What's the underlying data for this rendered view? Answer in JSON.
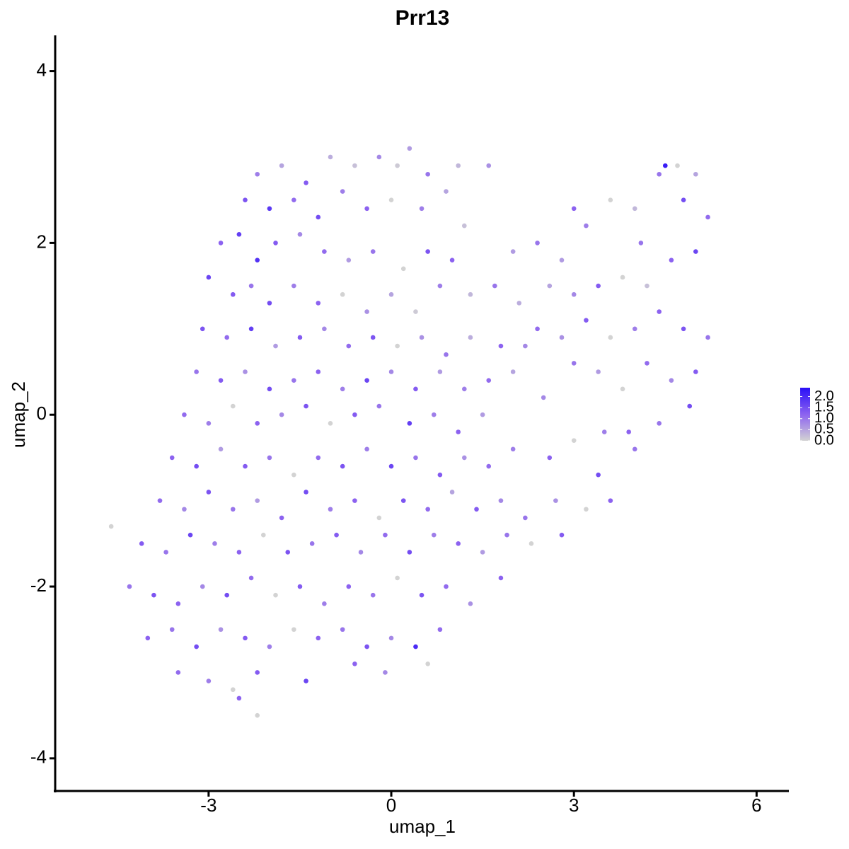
{
  "chart_data": {
    "type": "scatter",
    "title": "Prr13",
    "x_label": "umap_1",
    "y_label": "umap_2",
    "xlim": [
      -5.52,
      6.53
    ],
    "ylim": [
      -4.38,
      4.4
    ],
    "xticks": [
      -3,
      0,
      3,
      6
    ],
    "yticks": [
      -4,
      -2,
      0,
      2,
      4
    ],
    "colors": [
      "#d3d3d3",
      "#8c62f0",
      "#2a0ff7"
    ],
    "color_limits": [
      0,
      2.4
    ],
    "colorbar_ticks": [
      {
        "value": 0,
        "label": "0.0"
      },
      {
        "value": 0.5,
        "label": "0.5"
      },
      {
        "value": 1,
        "label": "1.0"
      },
      {
        "value": 1.5,
        "label": "1.5"
      },
      {
        "value": 2,
        "label": "2.0"
      }
    ],
    "x": [
      -2.2,
      -1.8,
      -1.4,
      -1.0,
      -0.6,
      -0.2,
      0.1,
      0.3,
      0.6,
      1.1,
      1.6,
      -2.4,
      -2.0,
      -1.6,
      -1.2,
      -0.8,
      -0.4,
      0.0,
      0.5,
      0.9,
      1.2,
      -2.8,
      -2.5,
      -2.2,
      -1.9,
      -1.5,
      -1.1,
      -0.7,
      -0.3,
      0.2,
      0.6,
      1.0,
      -3.0,
      -2.6,
      -2.3,
      -2.0,
      -1.6,
      -1.2,
      -0.8,
      -0.4,
      0.0,
      0.4,
      0.8,
      1.3,
      1.7,
      2.1,
      -3.1,
      -2.7,
      -2.3,
      -1.9,
      -1.5,
      -1.1,
      -0.7,
      -0.3,
      0.1,
      0.5,
      0.9,
      1.3,
      1.8,
      2.2,
      -3.2,
      -2.8,
      -2.4,
      -2.0,
      -1.6,
      -1.2,
      -0.8,
      -0.4,
      0.0,
      0.4,
      0.8,
      1.2,
      1.6,
      2.0,
      -3.4,
      -3.0,
      -2.6,
      -2.2,
      -1.8,
      -1.4,
      -1.0,
      -0.6,
      -0.2,
      0.3,
      0.7,
      1.1,
      1.5,
      2.5,
      -3.6,
      -3.2,
      -2.8,
      -2.4,
      -2.0,
      -1.6,
      -1.2,
      -0.8,
      -0.4,
      0.0,
      0.4,
      0.8,
      1.2,
      1.6,
      2.0,
      2.6,
      3.0,
      3.4,
      -3.8,
      -3.4,
      -3.0,
      -2.6,
      -2.2,
      -1.8,
      -1.4,
      -1.0,
      -0.6,
      -0.2,
      0.2,
      0.6,
      1.0,
      1.4,
      1.8,
      2.2,
      2.7,
      3.2,
      3.6,
      -4.6,
      -4.1,
      -3.7,
      -3.3,
      -2.9,
      -2.5,
      -2.1,
      -1.7,
      -1.3,
      -0.9,
      -0.5,
      -0.1,
      0.3,
      0.7,
      1.1,
      1.5,
      1.9,
      2.3,
      2.8,
      -4.3,
      -3.9,
      -3.5,
      -3.1,
      -2.7,
      -2.3,
      -1.9,
      -1.5,
      -1.1,
      -0.7,
      -0.3,
      0.1,
      0.5,
      0.9,
      1.3,
      1.8,
      -4.0,
      -3.6,
      -3.2,
      -2.8,
      -2.4,
      -2.0,
      -1.6,
      -1.2,
      -0.8,
      -0.4,
      0.0,
      0.4,
      0.8,
      -3.5,
      -3.0,
      -2.6,
      -2.2,
      -1.4,
      -0.6,
      -0.1,
      0.6,
      -2.2,
      -2.5,
      2.4,
      2.8,
      3.2,
      3.6,
      4.0,
      4.4,
      4.5,
      4.8,
      5.2,
      5.0,
      4.6,
      4.2,
      3.8,
      3.4,
      3.0,
      2.6,
      2.4,
      2.8,
      3.2,
      3.6,
      4.0,
      4.4,
      4.8,
      5.2,
      5.0,
      4.6,
      4.2,
      3.8,
      3.4,
      3.0,
      4.9,
      4.4,
      3.9,
      4.0,
      3.5,
      5.0,
      4.7,
      4.1,
      3.0,
      2.0
    ],
    "y": [
      2.8,
      2.9,
      2.7,
      3.0,
      2.9,
      3.0,
      2.9,
      3.1,
      2.8,
      2.9,
      2.9,
      2.5,
      2.4,
      2.5,
      2.3,
      2.6,
      2.4,
      2.5,
      2.4,
      2.6,
      2.2,
      2.0,
      2.1,
      1.8,
      2.0,
      2.1,
      1.9,
      1.8,
      1.9,
      1.7,
      1.9,
      1.8,
      1.6,
      1.4,
      1.5,
      1.3,
      1.5,
      1.3,
      1.4,
      1.2,
      1.4,
      1.2,
      1.5,
      1.4,
      1.5,
      1.3,
      1.0,
      0.9,
      1.0,
      0.8,
      0.9,
      1.0,
      0.8,
      0.9,
      0.8,
      0.9,
      0.7,
      0.9,
      0.8,
      0.8,
      0.5,
      0.4,
      0.5,
      0.3,
      0.4,
      0.5,
      0.3,
      0.4,
      0.5,
      0.3,
      0.5,
      0.3,
      0.4,
      0.5,
      0.0,
      -0.1,
      0.1,
      -0.1,
      0.0,
      0.1,
      -0.1,
      0.0,
      0.1,
      -0.1,
      0.0,
      -0.2,
      0.0,
      0.2,
      -0.5,
      -0.6,
      -0.4,
      -0.6,
      -0.5,
      -0.7,
      -0.5,
      -0.6,
      -0.4,
      -0.6,
      -0.5,
      -0.7,
      -0.5,
      -0.6,
      -0.4,
      -0.5,
      -0.3,
      -0.7,
      -1.0,
      -1.1,
      -0.9,
      -1.1,
      -1.0,
      -1.2,
      -0.9,
      -1.1,
      -1.0,
      -1.2,
      -1.0,
      -1.1,
      -0.9,
      -1.1,
      -1.0,
      -1.2,
      -1.0,
      -1.1,
      -1.0,
      -1.3,
      -1.5,
      -1.6,
      -1.4,
      -1.5,
      -1.6,
      -1.4,
      -1.6,
      -1.5,
      -1.4,
      -1.6,
      -1.4,
      -1.6,
      -1.4,
      -1.5,
      -1.6,
      -1.4,
      -1.5,
      -1.4,
      -2.0,
      -2.1,
      -2.2,
      -2.0,
      -2.1,
      -1.9,
      -2.1,
      -2.0,
      -2.2,
      -2.0,
      -2.1,
      -1.9,
      -2.1,
      -2.0,
      -2.2,
      -1.9,
      -2.6,
      -2.5,
      -2.7,
      -2.5,
      -2.6,
      -2.7,
      -2.5,
      -2.6,
      -2.5,
      -2.7,
      -2.6,
      -2.7,
      -2.5,
      -3.0,
      -3.1,
      -3.2,
      -3.0,
      -3.1,
      -2.9,
      -3.0,
      -2.9,
      -3.5,
      -3.3,
      2.0,
      1.8,
      2.2,
      2.5,
      2.4,
      2.8,
      2.9,
      2.5,
      2.3,
      1.9,
      1.8,
      1.5,
      1.6,
      1.5,
      1.4,
      1.5,
      1.0,
      0.9,
      1.1,
      0.9,
      1.0,
      1.2,
      1.0,
      0.9,
      0.5,
      0.4,
      0.6,
      0.3,
      0.5,
      0.6,
      0.1,
      -0.1,
      -0.2,
      -0.4,
      -0.2,
      2.8,
      2.9,
      2.0,
      2.4,
      1.9
    ],
    "values": [
      0.9,
      0.5,
      1.3,
      0.4,
      0.2,
      0.8,
      0.1,
      0.6,
      1.0,
      0.3,
      0.7,
      1.4,
      1.8,
      1.1,
      1.5,
      0.9,
      1.2,
      0.0,
      0.9,
      0.5,
      0.2,
      1.2,
      1.7,
      1.9,
      1.3,
      0.8,
      1.1,
      0.6,
      1.0,
      0.0,
      1.4,
      1.2,
      1.6,
      1.3,
      1.0,
      1.5,
      0.9,
      1.2,
      0.0,
      0.7,
      0.5,
      0.1,
      0.9,
      0.3,
      1.0,
      0.4,
      1.4,
      1.1,
      1.7,
      0.6,
      1.3,
      0.8,
      1.1,
      1.4,
      0.0,
      0.7,
      1.0,
      0.4,
      1.2,
      0.8,
      1.0,
      1.3,
      0.7,
      1.5,
      1.0,
      1.2,
      0.9,
      1.6,
      0.8,
      1.3,
      0.6,
      0.9,
      1.1,
      0.5,
      1.1,
      0.9,
      0.0,
      1.2,
      0.8,
      1.4,
      0.0,
      1.3,
      1.0,
      1.7,
      0.9,
      1.2,
      0.6,
      0.8,
      1.2,
      1.5,
      0.6,
      1.3,
      1.0,
      0.0,
      1.1,
      1.4,
      0.9,
      1.6,
      1.0,
      1.3,
      0.7,
      1.1,
      0.9,
      1.2,
      0.0,
      1.5,
      1.1,
      0.8,
      1.4,
      1.0,
      0.6,
      1.2,
      1.5,
      0.9,
      1.2,
      0.0,
      1.4,
      1.1,
      0.5,
      1.3,
      0.8,
      1.0,
      0.7,
      0.0,
      1.2,
      0.0,
      1.3,
      1.0,
      1.6,
      0.9,
      1.2,
      0.0,
      1.4,
      1.0,
      1.3,
      0.8,
      1.1,
      1.5,
      0.9,
      1.2,
      0.6,
      1.0,
      0.0,
      1.3,
      1.0,
      1.4,
      1.2,
      0.8,
      1.5,
      1.1,
      0.0,
      1.3,
      0.9,
      1.2,
      1.0,
      0.0,
      1.4,
      1.1,
      0.7,
      1.2,
      1.2,
      1.0,
      1.5,
      0.7,
      1.3,
      0.9,
      0.0,
      1.2,
      1.0,
      1.4,
      0.8,
      2.0,
      1.1,
      1.1,
      0.9,
      0.0,
      1.3,
      1.6,
      1.2,
      0.8,
      0.0,
      0.0,
      1.2,
      1.0,
      0.6,
      0.9,
      0.0,
      0.3,
      1.0,
      2.2,
      1.5,
      1.1,
      1.6,
      1.2,
      0.2,
      0.0,
      1.3,
      0.8,
      0.5,
      1.1,
      0.7,
      1.3,
      0.0,
      0.9,
      1.2,
      1.4,
      1.0,
      1.3,
      0.8,
      1.1,
      0.0,
      0.6,
      1.0,
      1.5,
      1.0,
      1.2,
      1.0,
      0.9,
      0.5,
      0.0,
      1.0,
      1.2,
      0.6
    ]
  }
}
